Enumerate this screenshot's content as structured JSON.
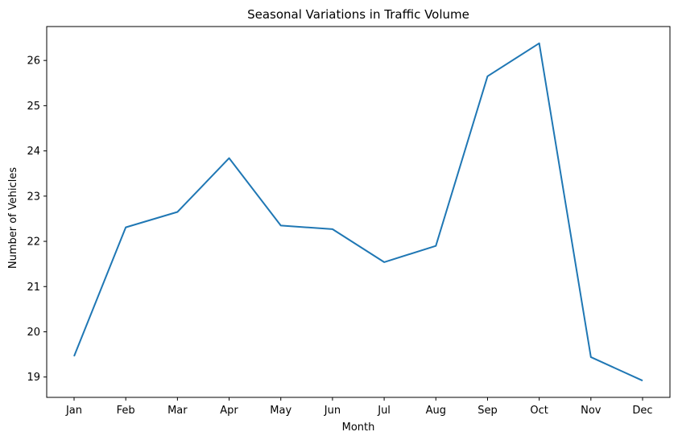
{
  "chart_data": {
    "type": "line",
    "title": "Seasonal Variations in Traffic Volume",
    "xlabel": "Month",
    "ylabel": "Number of Vehicles",
    "categories": [
      "Jan",
      "Feb",
      "Mar",
      "Apr",
      "May",
      "Jun",
      "Jul",
      "Aug",
      "Sep",
      "Oct",
      "Nov",
      "Dec"
    ],
    "series": [
      {
        "values": [
          19.46,
          22.31,
          22.65,
          23.84,
          22.35,
          22.27,
          21.54,
          21.9,
          25.65,
          26.38,
          19.44,
          18.92
        ],
        "color": "#1f77b4"
      }
    ],
    "yticks": [
      "19",
      "20",
      "21",
      "22",
      "23",
      "24",
      "25",
      "26"
    ],
    "ylim": [
      18.55,
      26.75
    ],
    "grid": false,
    "legend": false
  }
}
